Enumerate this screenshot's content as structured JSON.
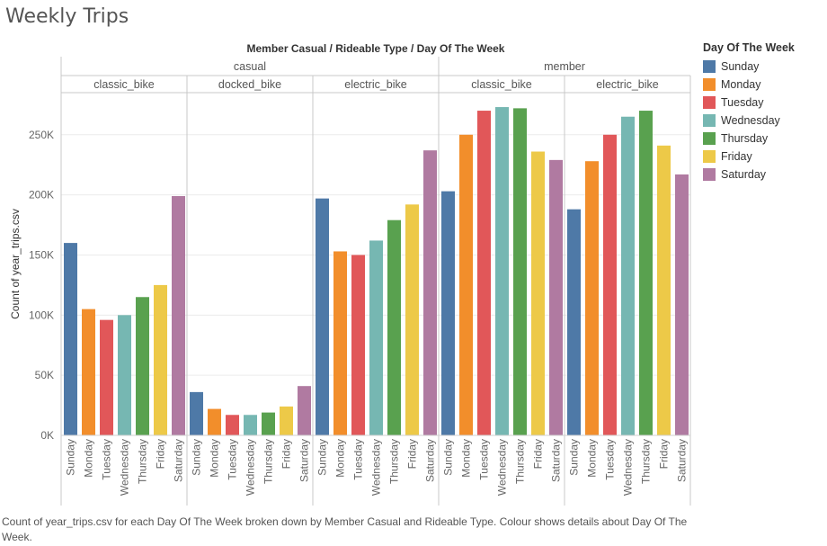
{
  "title": "Weekly Trips",
  "caption": "Count of year_trips.csv for each Day Of The Week broken down by Member Casual and Rideable Type.  Colour shows details about Day Of The Week.",
  "legend": {
    "title": "Day Of The Week",
    "items": [
      {
        "label": "Sunday",
        "color": "#4e79a7"
      },
      {
        "label": "Monday",
        "color": "#f28e2b"
      },
      {
        "label": "Tuesday",
        "color": "#e15759"
      },
      {
        "label": "Wednesday",
        "color": "#76b7b2"
      },
      {
        "label": "Thursday",
        "color": "#59a14f"
      },
      {
        "label": "Friday",
        "color": "#edc948"
      },
      {
        "label": "Saturday",
        "color": "#b07aa1"
      }
    ]
  },
  "chart_data": {
    "type": "bar",
    "header": "Member Casual  /  Rideable Type  /  Day Of The Week",
    "ylabel": "Count of year_trips.csv",
    "ylim": [
      0,
      285000
    ],
    "yticks": [
      0,
      50000,
      100000,
      150000,
      200000,
      250000
    ],
    "ytick_labels": [
      "0K",
      "50K",
      "100K",
      "150K",
      "200K",
      "250K"
    ],
    "grid": true,
    "categories": [
      "Sunday",
      "Monday",
      "Tuesday",
      "Wednesday",
      "Thursday",
      "Friday",
      "Saturday"
    ],
    "groups": [
      {
        "name": "casual",
        "panels": [
          {
            "name": "classic_bike",
            "values": [
              160000,
              105000,
              96000,
              100000,
              115000,
              125000,
              199000
            ]
          },
          {
            "name": "docked_bike",
            "values": [
              36000,
              22000,
              17000,
              17000,
              19000,
              24000,
              41000
            ]
          },
          {
            "name": "electric_bike",
            "values": [
              197000,
              153000,
              150000,
              162000,
              179000,
              192000,
              237000
            ]
          }
        ]
      },
      {
        "name": "member",
        "panels": [
          {
            "name": "classic_bike",
            "values": [
              203000,
              250000,
              270000,
              273000,
              272000,
              236000,
              229000
            ]
          },
          {
            "name": "electric_bike",
            "values": [
              188000,
              228000,
              250000,
              265000,
              270000,
              241000,
              217000
            ]
          }
        ]
      }
    ]
  }
}
